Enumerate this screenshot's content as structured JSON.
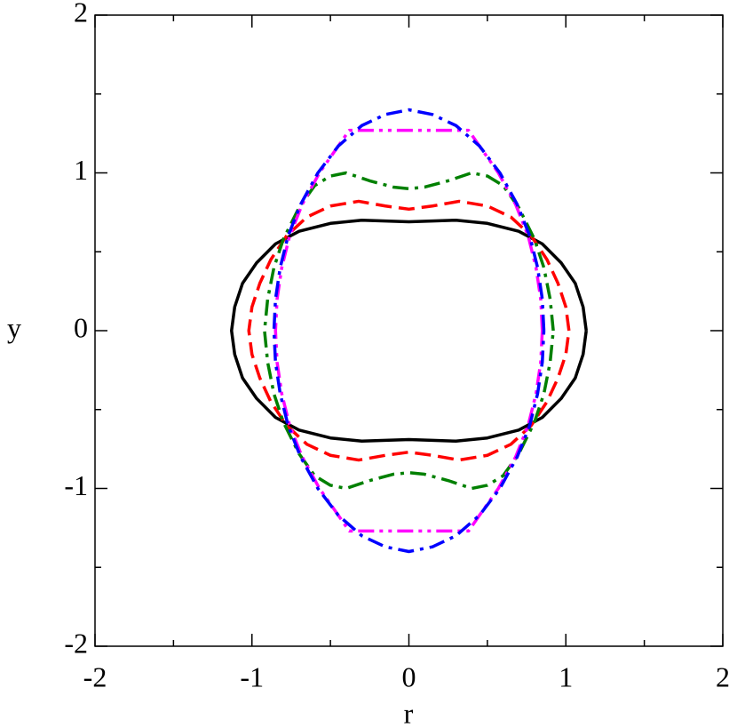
{
  "chart_data": {
    "type": "line",
    "xlabel": "r",
    "ylabel": "y",
    "xlim": [
      -2,
      2
    ],
    "ylim": [
      -2,
      2
    ],
    "xticks": [
      -2,
      -1,
      0,
      1,
      2
    ],
    "yticks": [
      -2,
      -1,
      0,
      1,
      2
    ],
    "xminor_ticks": [
      -1.5,
      -0.5,
      0.5,
      1.5
    ],
    "yminor_ticks": [
      -1.5,
      -0.5,
      0.5,
      1.5
    ],
    "series": [
      {
        "color": "#000000",
        "dash": "solid",
        "x": [
          1.13,
          1.11,
          1.06,
          0.97,
          0.85,
          0.7,
          0.5,
          0.3,
          0.15,
          0,
          -0.15,
          -0.3,
          -0.5,
          -0.7,
          -0.85,
          -0.97,
          -1.06,
          -1.11,
          -1.13,
          -1.11,
          -1.06,
          -0.97,
          -0.85,
          -0.7,
          -0.5,
          -0.3,
          -0.15,
          0,
          0.15,
          0.3,
          0.5,
          0.7,
          0.85,
          0.97,
          1.06,
          1.11,
          1.13
        ],
        "y": [
          0,
          0.15,
          0.3,
          0.43,
          0.55,
          0.63,
          0.68,
          0.7,
          0.695,
          0.69,
          0.695,
          0.7,
          0.68,
          0.63,
          0.55,
          0.43,
          0.3,
          0.15,
          0,
          -0.15,
          -0.3,
          -0.43,
          -0.55,
          -0.63,
          -0.68,
          -0.7,
          -0.695,
          -0.69,
          -0.695,
          -0.7,
          -0.68,
          -0.63,
          -0.55,
          -0.43,
          -0.3,
          -0.15,
          0
        ]
      },
      {
        "color": "#ff0000",
        "dash": "dash",
        "x": [
          1.02,
          1.0,
          0.95,
          0.88,
          0.78,
          0.65,
          0.5,
          0.32,
          0.15,
          0,
          -0.15,
          -0.32,
          -0.5,
          -0.65,
          -0.78,
          -0.88,
          -0.95,
          -1.0,
          -1.02,
          -1.0,
          -0.95,
          -0.88,
          -0.78,
          -0.65,
          -0.5,
          -0.32,
          -0.15,
          0,
          0.15,
          0.32,
          0.5,
          0.65,
          0.78,
          0.88,
          0.95,
          1.0,
          1.02
        ],
        "y": [
          0,
          0.15,
          0.3,
          0.45,
          0.6,
          0.72,
          0.79,
          0.82,
          0.79,
          0.77,
          0.79,
          0.82,
          0.79,
          0.72,
          0.6,
          0.45,
          0.3,
          0.15,
          0,
          -0.15,
          -0.3,
          -0.45,
          -0.6,
          -0.72,
          -0.79,
          -0.82,
          -0.79,
          -0.77,
          -0.79,
          -0.82,
          -0.79,
          -0.72,
          -0.6,
          -0.45,
          -0.3,
          -0.15,
          0
        ]
      },
      {
        "color": "#008000",
        "dash": "dashdot",
        "x": [
          0.92,
          0.9,
          0.86,
          0.8,
          0.7,
          0.6,
          0.5,
          0.4,
          0.25,
          0.1,
          0,
          -0.1,
          -0.25,
          -0.4,
          -0.5,
          -0.6,
          -0.7,
          -0.8,
          -0.86,
          -0.9,
          -0.92,
          -0.9,
          -0.86,
          -0.8,
          -0.7,
          -0.6,
          -0.5,
          -0.4,
          -0.25,
          -0.1,
          0,
          0.1,
          0.25,
          0.4,
          0.5,
          0.6,
          0.7,
          0.8,
          0.86,
          0.9,
          0.92
        ],
        "y": [
          0,
          0.2,
          0.4,
          0.58,
          0.78,
          0.92,
          0.98,
          1.0,
          0.95,
          0.91,
          0.9,
          0.91,
          0.95,
          1.0,
          0.98,
          0.92,
          0.78,
          0.58,
          0.4,
          0.2,
          0,
          -0.2,
          -0.4,
          -0.58,
          -0.78,
          -0.92,
          -0.98,
          -1.0,
          -0.95,
          -0.91,
          -0.9,
          -0.91,
          -0.95,
          -1.0,
          -0.98,
          -0.92,
          -0.78,
          -0.58,
          -0.4,
          -0.2,
          0
        ]
      },
      {
        "color": "#ff00ff",
        "dash": "dashdotdot",
        "x": [
          0.85,
          0.84,
          0.81,
          0.76,
          0.68,
          0.57,
          0.45,
          0.38,
          0,
          -0.38,
          -0.45,
          -0.57,
          -0.68,
          -0.76,
          -0.81,
          -0.84,
          -0.85,
          -0.84,
          -0.81,
          -0.76,
          -0.68,
          -0.57,
          -0.45,
          -0.38,
          0,
          0.38,
          0.45,
          0.57,
          0.68,
          0.76,
          0.81,
          0.84,
          0.85
        ],
        "y": [
          0,
          0.2,
          0.4,
          0.6,
          0.8,
          1.0,
          1.17,
          1.27,
          1.27,
          1.27,
          1.17,
          1.0,
          0.8,
          0.6,
          0.4,
          0.2,
          0,
          -0.2,
          -0.4,
          -0.6,
          -0.8,
          -1.0,
          -1.17,
          -1.27,
          -1.27,
          -1.27,
          -1.17,
          -1.0,
          -0.8,
          -0.6,
          -0.4,
          -0.2,
          0
        ]
      },
      {
        "color": "#0000ff",
        "dash": "dashdot",
        "x": [
          0.86,
          0.85,
          0.82,
          0.77,
          0.69,
          0.58,
          0.45,
          0.3,
          0.15,
          0,
          -0.15,
          -0.3,
          -0.45,
          -0.58,
          -0.69,
          -0.77,
          -0.82,
          -0.85,
          -0.86,
          -0.85,
          -0.82,
          -0.77,
          -0.69,
          -0.58,
          -0.45,
          -0.3,
          -0.15,
          0,
          0.15,
          0.3,
          0.45,
          0.58,
          0.69,
          0.77,
          0.82,
          0.85,
          0.86
        ],
        "y": [
          0,
          0.2,
          0.4,
          0.6,
          0.8,
          1.0,
          1.17,
          1.3,
          1.37,
          1.4,
          1.37,
          1.3,
          1.17,
          1.0,
          0.8,
          0.6,
          0.4,
          0.2,
          0,
          -0.2,
          -0.4,
          -0.6,
          -0.8,
          -1.0,
          -1.17,
          -1.3,
          -1.37,
          -1.4,
          -1.37,
          -1.3,
          -1.17,
          -1.0,
          -0.8,
          -0.6,
          -0.4,
          -0.2,
          0
        ]
      }
    ]
  }
}
